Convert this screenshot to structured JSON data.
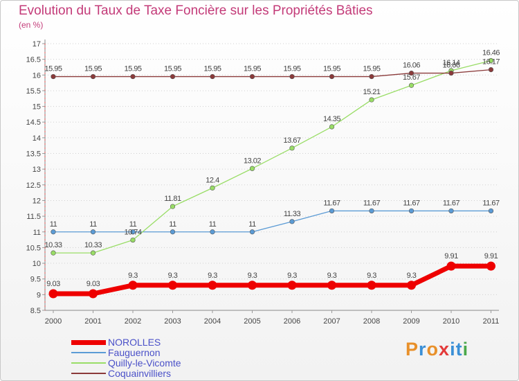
{
  "header": {
    "title": "Evolution du Taux de Taxe Foncière sur les Propriétés Bâties",
    "subtitle": "(en %)"
  },
  "logo": {
    "text": "Proxiti",
    "colors": [
      "#e8902a",
      "#3a8fd6",
      "#e8902a",
      "#e33a3a",
      "#3a8fd6",
      "#3a8fd6",
      "#4aa84a"
    ]
  },
  "chart_data": {
    "type": "line",
    "title": "Evolution du Taux de Taxe Foncière sur les Propriétés Bâties",
    "ylabel": "(en %)",
    "xlabel": "",
    "categories": [
      "2000",
      "2001",
      "2002",
      "2003",
      "2004",
      "2005",
      "2006",
      "2007",
      "2008",
      "2009",
      "2010",
      "2011"
    ],
    "ylim": [
      8.5,
      17
    ],
    "yticks": [
      "8.5",
      "9",
      "9.5",
      "10",
      "10.5",
      "11",
      "11.5",
      "12",
      "12.5",
      "13",
      "13.5",
      "14",
      "14.5",
      "15",
      "15.5",
      "16",
      "16.5",
      "17"
    ],
    "grid": "horizontal-dotted",
    "legend_position": "bottom-left",
    "series": [
      {
        "name": "NOROLLES",
        "color": "#ee0000",
        "emphasis": true,
        "values": [
          9.03,
          9.03,
          9.3,
          9.3,
          9.3,
          9.3,
          9.3,
          9.3,
          9.3,
          9.3,
          9.91,
          9.91
        ],
        "labels": [
          "9.03",
          "9.03",
          "9.3",
          "9.3",
          "9.3",
          "9.3",
          "9.3",
          "9.3",
          "9.3",
          "9.3",
          "9.91",
          "9.91"
        ]
      },
      {
        "name": "Fauguernon",
        "color": "#5b9bd5",
        "values": [
          11,
          11,
          11,
          11,
          11,
          11,
          11.33,
          11.67,
          11.67,
          11.67,
          11.67,
          11.67
        ],
        "labels": [
          "11",
          "11",
          "11",
          "11",
          "11",
          "11",
          "11.33",
          "11.67",
          "11.67",
          "11.67",
          "11.67",
          "11.67"
        ]
      },
      {
        "name": "Quilly-le-Vicomte",
        "color": "#99dd66",
        "values": [
          10.33,
          10.33,
          10.74,
          11.81,
          12.4,
          13.02,
          13.67,
          14.35,
          15.21,
          15.67,
          16.14,
          16.46
        ],
        "labels": [
          "10.33",
          "10.33",
          "10.74",
          "11.81",
          "12.4",
          "13.02",
          "13.67",
          "14.35",
          "15.21",
          "15.67",
          "16.14",
          "16.46"
        ]
      },
      {
        "name": "Coquainvilliers",
        "color": "#8b3a3a",
        "values": [
          15.95,
          15.95,
          15.95,
          15.95,
          15.95,
          15.95,
          15.95,
          15.95,
          15.95,
          16.06,
          16.06,
          16.17
        ],
        "labels": [
          "15.95",
          "15.95",
          "15.95",
          "15.95",
          "15.95",
          "15.95",
          "15.95",
          "15.95",
          "15.95",
          "16.06",
          "16.06",
          "16.17"
        ]
      }
    ]
  }
}
